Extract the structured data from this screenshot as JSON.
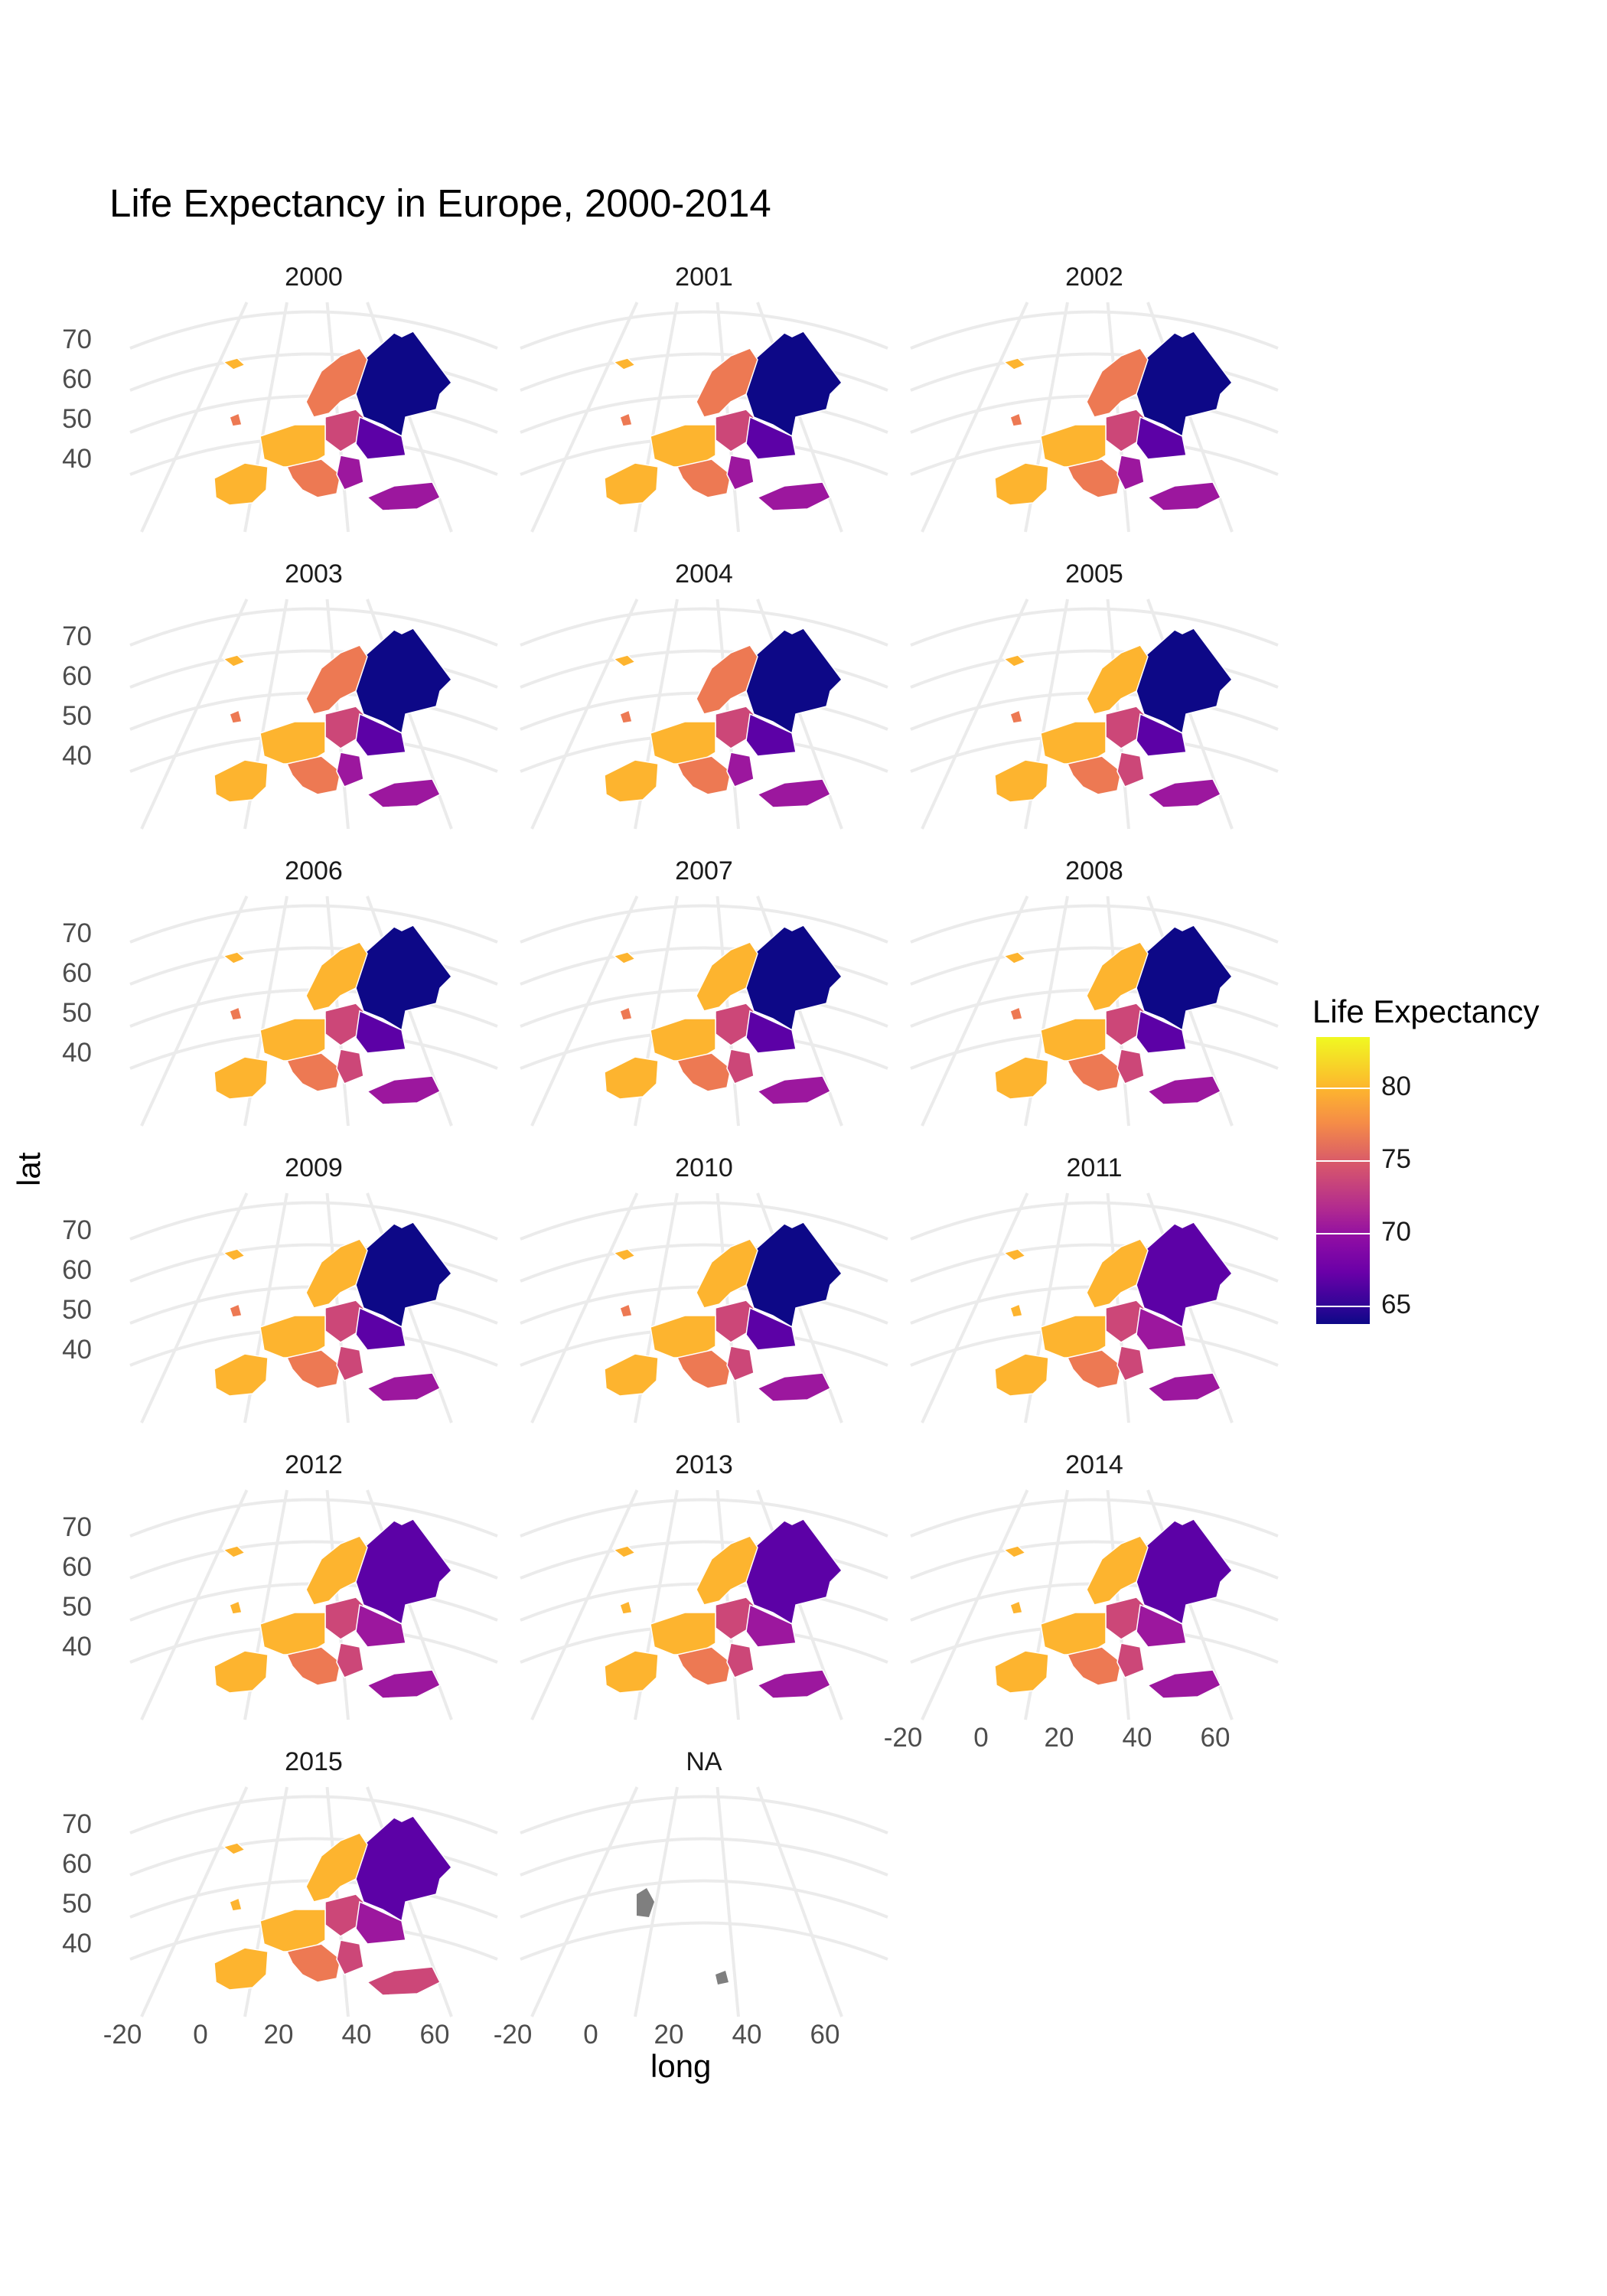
{
  "title": "Life Expectancy in Europe, 2000-2014",
  "xlabel": "long",
  "ylabel": "lat",
  "legend": {
    "title": "Life Expectancy",
    "ticks": [
      "80",
      "75",
      "70",
      "65"
    ],
    "colors": [
      "#0d0887",
      "#6a00a8",
      "#b12a90",
      "#e16462",
      "#fca636",
      "#f0f921"
    ]
  },
  "facets": [
    "2000",
    "2001",
    "2002",
    "2003",
    "2004",
    "2005",
    "2006",
    "2007",
    "2008",
    "2009",
    "2010",
    "2011",
    "2012",
    "2013",
    "2014",
    "2015",
    "NA"
  ],
  "y_ticks": [
    "70",
    "60",
    "50",
    "40"
  ],
  "x_ticks": [
    "-20",
    "0",
    "20",
    "40",
    "60"
  ],
  "colors": {
    "grid": "#ebebeb",
    "na_fill": "#7f7f7f"
  }
}
